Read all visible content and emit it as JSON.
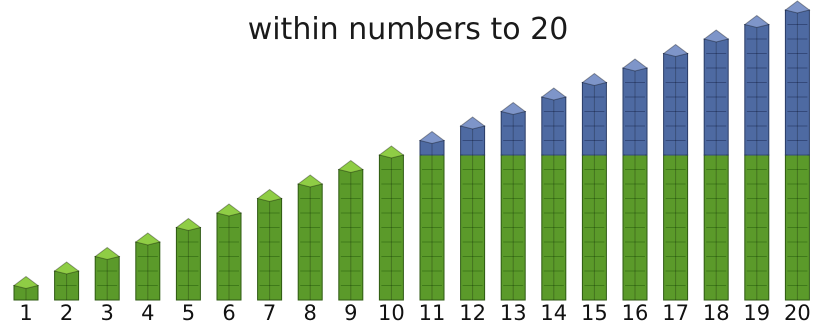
{
  "title": {
    "line1": "",
    "line2": "within numbers to 20"
  },
  "colors": {
    "ten_cube": "#5b9a2a",
    "ten_cube_top": "#8fcd45",
    "extra_cube": "#4e6aa2",
    "extra_cube_top": "#7e95c9"
  },
  "chart_data": {
    "type": "bar",
    "categories": [
      "1",
      "2",
      "3",
      "4",
      "5",
      "6",
      "7",
      "8",
      "9",
      "10",
      "11",
      "12",
      "13",
      "14",
      "15",
      "16",
      "17",
      "18",
      "19",
      "20"
    ],
    "series": [
      {
        "values": [
          1,
          2,
          3,
          4,
          5,
          6,
          7,
          8,
          9,
          10,
          10,
          10,
          10,
          10,
          10,
          10,
          10,
          10,
          10,
          10
        ]
      },
      {
        "values": [
          0,
          0,
          0,
          0,
          0,
          0,
          0,
          0,
          0,
          0,
          1,
          2,
          3,
          4,
          5,
          6,
          7,
          8,
          9,
          10
        ]
      }
    ],
    "xlabel": "",
    "ylabel": "",
    "ylim": [
      0,
      20
    ]
  }
}
